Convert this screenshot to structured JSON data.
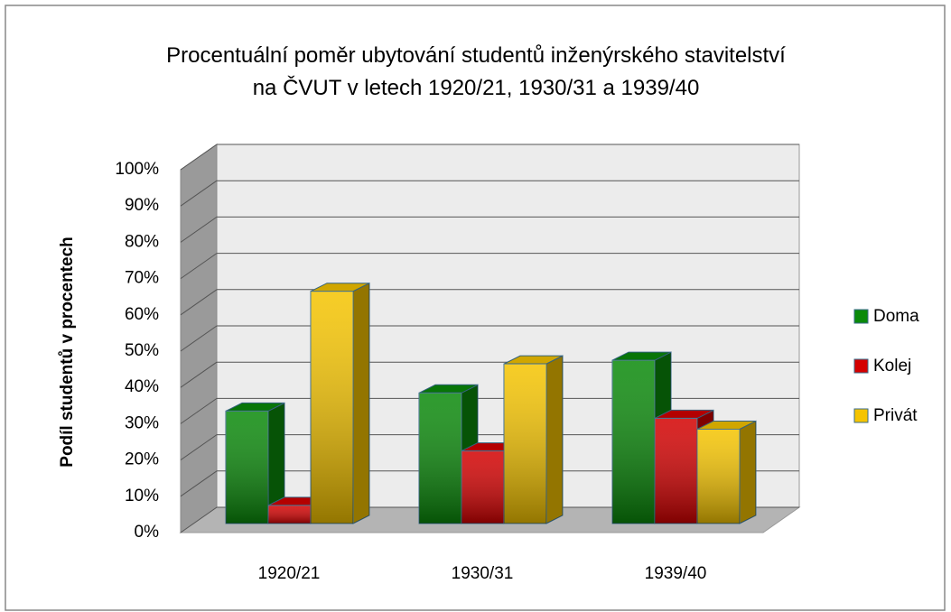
{
  "chart_data": {
    "type": "bar3d",
    "title": "Procentuální poměr ubytování studentů inženýrského stavitelství na ČVUT v letech 1920/21, 1930/31 a 1939/40",
    "y_label": "Podíl studentů v procentech",
    "categories": [
      "1920/21",
      "1930/31",
      "1939/40"
    ],
    "series": [
      {
        "name": "Doma",
        "color": "#0a8a0a",
        "values": [
          31,
          36,
          45
        ]
      },
      {
        "name": "Kolej",
        "color": "#d40000",
        "values": [
          5,
          20,
          29
        ]
      },
      {
        "name": "Privát",
        "color": "#f5c400",
        "values": [
          64,
          44,
          26
        ]
      }
    ],
    "ylim": [
      0,
      100
    ],
    "yticks": [
      {
        "value": 0,
        "label": "0%"
      },
      {
        "value": 10,
        "label": "10%"
      },
      {
        "value": 20,
        "label": "20%"
      },
      {
        "value": 30,
        "label": "30%"
      },
      {
        "value": 40,
        "label": "40%"
      },
      {
        "value": 50,
        "label": "50%"
      },
      {
        "value": 60,
        "label": "60%"
      },
      {
        "value": 70,
        "label": "70%"
      },
      {
        "value": 80,
        "label": "80%"
      },
      {
        "value": 90,
        "label": "90%"
      },
      {
        "value": 100,
        "label": "100%"
      }
    ],
    "grid": true,
    "legend": "right"
  }
}
